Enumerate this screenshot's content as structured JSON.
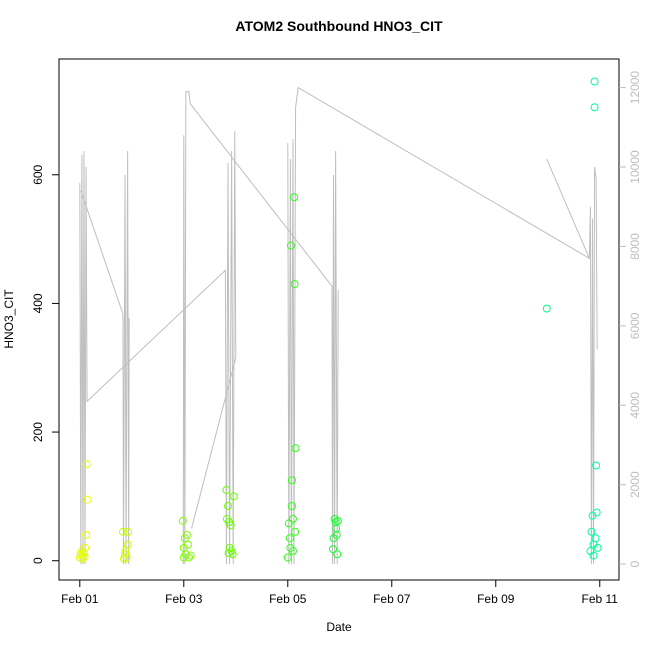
{
  "chart_data": {
    "type": "scatter",
    "title": "ATOM2 Southbound HNO3_CIT",
    "xlabel": "Date",
    "ylabel": "HNO3_CIT",
    "xlim": [
      -0.4,
      10.37
    ],
    "ylim": [
      -30,
      780
    ],
    "y2lim": [
      -400,
      12720
    ],
    "xticks": [
      {
        "value": 0,
        "label": "Feb 01"
      },
      {
        "value": 2,
        "label": "Feb 03"
      },
      {
        "value": 4,
        "label": "Feb 05"
      },
      {
        "value": 6,
        "label": "Feb 07"
      },
      {
        "value": 8,
        "label": "Feb 09"
      },
      {
        "value": 10,
        "label": "Feb 11"
      }
    ],
    "yticks": [
      0,
      200,
      400,
      600
    ],
    "y2ticks": [
      0,
      2000,
      4000,
      6000,
      8000,
      10000,
      12000
    ],
    "series": [
      {
        "type": "scatter",
        "color": "#e6ff00",
        "x": [
          0.0,
          0.02,
          0.04,
          0.06,
          0.08,
          0.1,
          0.12,
          0.13,
          0.15,
          0.05,
          0.09
        ],
        "values": [
          5,
          10,
          15,
          8,
          12,
          20,
          40,
          150,
          95,
          3,
          6
        ]
      },
      {
        "type": "scatter",
        "color": "#ccff00",
        "x": [
          0.83,
          0.87,
          0.9,
          0.92,
          0.93,
          0.85,
          0.88
        ],
        "values": [
          45,
          10,
          5,
          25,
          45,
          3,
          15
        ]
      },
      {
        "type": "scatter",
        "color": "#80ff00",
        "x": [
          1.98,
          2.0,
          2.02,
          2.04,
          2.06,
          2.08,
          2.1,
          2.13,
          2.0
        ],
        "values": [
          62,
          20,
          35,
          10,
          40,
          25,
          5,
          8,
          5
        ]
      },
      {
        "type": "scatter",
        "color": "#66ff00",
        "x": [
          2.82,
          2.83,
          2.85,
          2.87,
          2.9,
          2.92,
          2.94,
          2.96,
          2.88,
          2.86
        ],
        "values": [
          110,
          65,
          85,
          60,
          55,
          15,
          10,
          100,
          20,
          12
        ]
      },
      {
        "type": "scatter",
        "color": "#33ff1a",
        "x": [
          4.0,
          4.02,
          4.04,
          4.06,
          4.08,
          4.1,
          4.12,
          4.13,
          4.15,
          4.08,
          4.1,
          4.14,
          4.05
        ],
        "values": [
          5,
          58,
          35,
          490,
          85,
          15,
          565,
          430,
          175,
          125,
          65,
          45,
          20
        ]
      },
      {
        "type": "scatter",
        "color": "#1aff33",
        "x": [
          4.87,
          4.88,
          4.9,
          4.92,
          4.93,
          4.95,
          4.96,
          4.94
        ],
        "values": [
          18,
          35,
          65,
          60,
          50,
          10,
          62,
          40
        ]
      },
      {
        "type": "scatter",
        "color": "#00ff80",
        "x": [
          8.98
        ],
        "values": [
          392
        ]
      },
      {
        "type": "scatter",
        "color": "#00ff99",
        "x": [
          9.82,
          9.84,
          9.86,
          9.88,
          9.9,
          9.9,
          9.92,
          9.93,
          9.94,
          9.96,
          9.88
        ],
        "values": [
          15,
          45,
          70,
          25,
          745,
          705,
          35,
          148,
          75,
          20,
          8
        ]
      },
      {
        "type": "line",
        "axis": "y2",
        "color": "#bebebe",
        "x": [
          0.0,
          0.02,
          0.04,
          0.06,
          0.08,
          0.1,
          0.12,
          0.14,
          2.8,
          2.82,
          2.85,
          2.88,
          2.92,
          2.95,
          2.98,
          3.0,
          2.15,
          null,
          0.02,
          0.83,
          0.84,
          0.87,
          0.89,
          0.92,
          0.94,
          0.95,
          null,
          1.99,
          2.0,
          2.02,
          2.04,
          2.1,
          2.12,
          4.85,
          4.86,
          4.88,
          4.9,
          4.92,
          4.95,
          4.97,
          null,
          4.0,
          4.02,
          4.05,
          4.07,
          4.1,
          4.12,
          4.15,
          4.2,
          9.8,
          9.82,
          9.84,
          9.86,
          9.88,
          9.9,
          9.93,
          9.95,
          null,
          8.98,
          9.8
        ],
        "values": [
          9600,
          0,
          10300,
          0,
          10400,
          0,
          10000,
          4100,
          7400,
          0,
          10100,
          0,
          10400,
          0,
          10900,
          5200,
          900,
          null,
          9400,
          6300,
          0,
          9800,
          0,
          10400,
          0,
          6200,
          null,
          0,
          10800,
          0,
          11900,
          11900,
          11600,
          7000,
          0,
          9800,
          0,
          10400,
          0,
          6900,
          null,
          10600,
          0,
          10200,
          0,
          10700,
          0,
          11500,
          12000,
          7700,
          9000,
          0,
          8700,
          0,
          10000,
          9700,
          5400,
          null,
          10200,
          7700
        ]
      }
    ]
  }
}
